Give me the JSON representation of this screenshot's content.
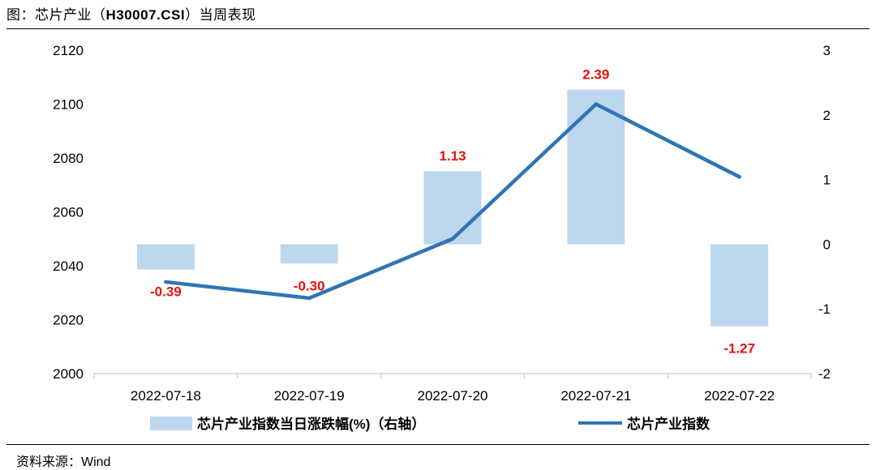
{
  "header": {
    "title_prefix": "图：芯片产业（",
    "title_code": "H30007.CSI",
    "title_suffix": "）当周表现"
  },
  "footer": {
    "source": "资料来源：Wind"
  },
  "colors": {
    "bar": "#bdd7ee",
    "line": "#2e75b6",
    "label": "#e8130c"
  },
  "chart_data": {
    "type": "bar+line",
    "categories": [
      "2022-07-18",
      "2022-07-19",
      "2022-07-20",
      "2022-07-21",
      "2022-07-22"
    ],
    "series": [
      {
        "name": "芯片产业指数当日涨跌幅(%)（右轴）",
        "type": "bar",
        "axis": "right",
        "values": [
          -0.39,
          -0.3,
          1.13,
          2.39,
          -1.27
        ],
        "labels": [
          "-0.39",
          "-0.30",
          "1.13",
          "2.39",
          "-1.27"
        ]
      },
      {
        "name": "芯片产业指数",
        "type": "line",
        "axis": "left",
        "values": [
          2034,
          2028,
          2050,
          2100,
          2073
        ]
      }
    ],
    "y_left": {
      "min": 2000,
      "max": 2120,
      "ticks": [
        "2000",
        "2020",
        "2040",
        "2060",
        "2080",
        "2100",
        "2120"
      ]
    },
    "y_right": {
      "min": -2,
      "max": 3,
      "ticks": [
        "-2",
        "-1",
        "0",
        "1",
        "2",
        "3"
      ]
    },
    "grid": false,
    "legend_position": "bottom"
  }
}
